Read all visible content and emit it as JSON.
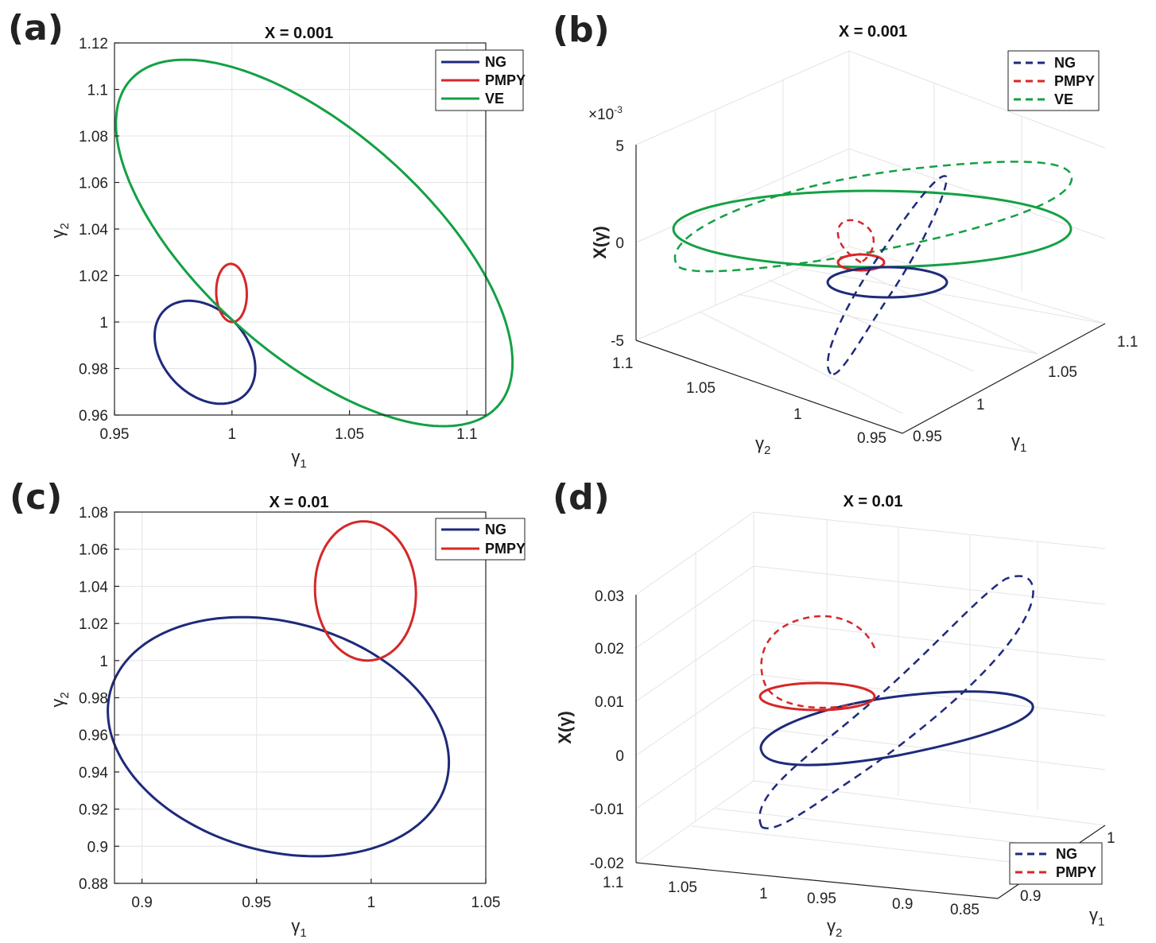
{
  "colors": {
    "NG": "#1f2a7a",
    "PMPY": "#d62728",
    "VE": "#14a044"
  },
  "chart_data": [
    {
      "panel": "(a)",
      "type": "line",
      "title": "X = 0.001",
      "xlabel": "γ1",
      "ylabel": "γ2",
      "xlim": [
        0.95,
        1.108
      ],
      "ylim": [
        0.96,
        1.12
      ],
      "xticks": [
        0.95,
        1.0,
        1.05,
        1.1
      ],
      "xticklabels": [
        "0.95",
        "1",
        "1.05",
        "1.1"
      ],
      "yticks": [
        0.96,
        0.98,
        1.0,
        1.02,
        1.04,
        1.06,
        1.08,
        1.1,
        1.12
      ],
      "yticklabels": [
        "0.96",
        "0.98",
        "1",
        "1.02",
        "1.04",
        "1.06",
        "1.08",
        "1.1",
        "1.12"
      ],
      "legend": [
        "NG",
        "PMPY",
        "VE"
      ],
      "legend_position": "top-right",
      "series": [
        {
          "name": "NG",
          "style": "solid",
          "center": [
            0.9885,
            0.987
          ],
          "semi_axes": [
            0.025,
            0.018
          ],
          "angle_deg": -48
        },
        {
          "name": "PMPY",
          "style": "solid",
          "center": [
            0.9998,
            1.0125
          ],
          "semi_axes": [
            0.0125,
            0.0065
          ],
          "angle_deg": 92
        },
        {
          "name": "VE",
          "style": "solid",
          "center": [
            1.035,
            1.034
          ],
          "semi_axes": [
            0.105,
            0.048
          ],
          "angle_deg": -42
        }
      ]
    },
    {
      "panel": "(b)",
      "type": "line3d",
      "title": "X = 0.001",
      "xlabel": "γ1",
      "ylabel": "γ2",
      "zlabel": "X(γ)",
      "zexponent": "×10-3",
      "zticklabels": [
        "5",
        "0",
        "-5"
      ],
      "xticklabels": [
        "0.95",
        "1",
        "1.05",
        "1.1"
      ],
      "yticklabels": [
        "1.1",
        "1.05",
        "1",
        "0.95"
      ],
      "legend": [
        "NG",
        "PMPY",
        "VE"
      ],
      "legend_style": "dashed",
      "legend_position": "top-right",
      "series": [
        {
          "name": "VE",
          "style": "solid",
          "plane": "z=0"
        },
        {
          "name": "VE",
          "style": "dashed"
        },
        {
          "name": "PMPY",
          "style": "solid",
          "plane": "z=0"
        },
        {
          "name": "PMPY",
          "style": "dashed"
        },
        {
          "name": "NG",
          "style": "solid",
          "plane": "z=0"
        },
        {
          "name": "NG",
          "style": "dashed"
        }
      ]
    },
    {
      "panel": "(c)",
      "type": "line",
      "title": "X = 0.01",
      "xlabel": "γ1",
      "ylabel": "γ2",
      "xlim": [
        0.888,
        1.05
      ],
      "ylim": [
        0.88,
        1.08
      ],
      "xticks": [
        0.9,
        0.95,
        1.0,
        1.05
      ],
      "xticklabels": [
        "0.9",
        "0.95",
        "1",
        "1.05"
      ],
      "yticks": [
        0.88,
        0.9,
        0.92,
        0.94,
        0.96,
        0.98,
        1.0,
        1.02,
        1.04,
        1.06,
        1.08
      ],
      "yticklabels": [
        "0.88",
        "0.9",
        "0.92",
        "0.94",
        "0.96",
        "0.98",
        "1",
        "1.02",
        "1.04",
        "1.06",
        "1.08"
      ],
      "legend": [
        "NG",
        "PMPY"
      ],
      "legend_position": "top-right",
      "series": [
        {
          "name": "NG",
          "style": "solid",
          "center": [
            0.9595,
            0.959
          ],
          "semi_axes": [
            0.078,
            0.06
          ],
          "angle_deg": -28
        },
        {
          "name": "PMPY",
          "style": "solid",
          "center": [
            0.9975,
            1.0375
          ],
          "semi_axes": [
            0.0375,
            0.022
          ],
          "angle_deg": 92
        }
      ]
    },
    {
      "panel": "(d)",
      "type": "line3d",
      "title": "X = 0.01",
      "xlabel": "γ1",
      "ylabel": "γ2",
      "zlabel": "X(γ)",
      "zticklabels": [
        "0.03",
        "0.02",
        "0.01",
        "0",
        "-0.01",
        "-0.02"
      ],
      "xticklabels": [
        "0.9",
        "1"
      ],
      "yticklabels": [
        "1.1",
        "1.05",
        "1",
        "0.95",
        "0.9",
        "0.85"
      ],
      "legend": [
        "NG",
        "PMPY"
      ],
      "legend_style": "dashed",
      "legend_position": "bottom-right",
      "series": [
        {
          "name": "NG",
          "style": "solid",
          "plane": "z=0"
        },
        {
          "name": "NG",
          "style": "dashed"
        },
        {
          "name": "PMPY",
          "style": "solid",
          "plane": "z=0"
        },
        {
          "name": "PMPY",
          "style": "dashed"
        }
      ]
    }
  ]
}
